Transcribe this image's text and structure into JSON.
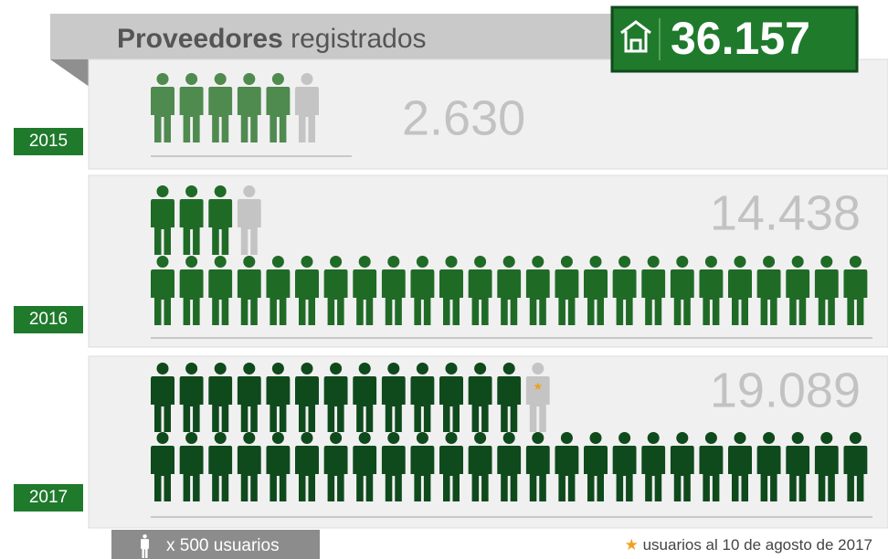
{
  "chart_data": {
    "type": "pictogram",
    "title": "Proveedores",
    "title_suffix": "registrados",
    "total": 36157,
    "total_label": "36.157",
    "categories": [
      "2015",
      "2016",
      "2017"
    ],
    "values": [
      2630,
      14438,
      19089
    ],
    "value_labels": [
      "2.630",
      "14.438",
      "19.089"
    ],
    "colors": [
      "#4f8a4f",
      "#1f6b26",
      "#0f4a1c"
    ],
    "unit": 500,
    "unit_label": "x 500 usuarios",
    "footnote": "usuarios al 10 de agosto de 2017"
  }
}
